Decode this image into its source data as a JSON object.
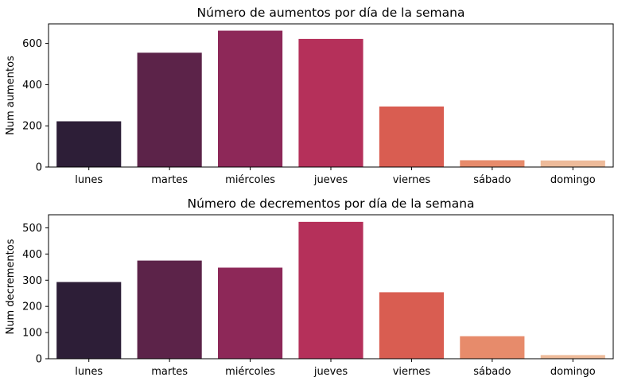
{
  "colors": [
    "#2d1e37",
    "#5c2349",
    "#8d2858",
    "#b5305a",
    "#d95d51",
    "#e78b6b",
    "#eebb9a"
  ],
  "chart_data": [
    {
      "type": "bar",
      "title": "Número de aumentos por día de la semana",
      "xlabel": "",
      "ylabel": "Num aumentos",
      "categories": [
        "lunes",
        "martes",
        "miércoles",
        "jueves",
        "viernes",
        "sábado",
        "domingo"
      ],
      "values": [
        222,
        555,
        662,
        622,
        294,
        33,
        32
      ],
      "ylim": [
        0,
        695
      ],
      "yticks": [
        0,
        200,
        400,
        600
      ]
    },
    {
      "type": "bar",
      "title": "Número de decrementos por día de la semana",
      "xlabel": "",
      "ylabel": "Num decrementos",
      "categories": [
        "lunes",
        "martes",
        "miércoles",
        "jueves",
        "viernes",
        "sábado",
        "domingo"
      ],
      "values": [
        293,
        375,
        348,
        523,
        254,
        86,
        14
      ],
      "ylim": [
        0,
        550
      ],
      "yticks": [
        0,
        100,
        200,
        300,
        400,
        500
      ]
    }
  ]
}
